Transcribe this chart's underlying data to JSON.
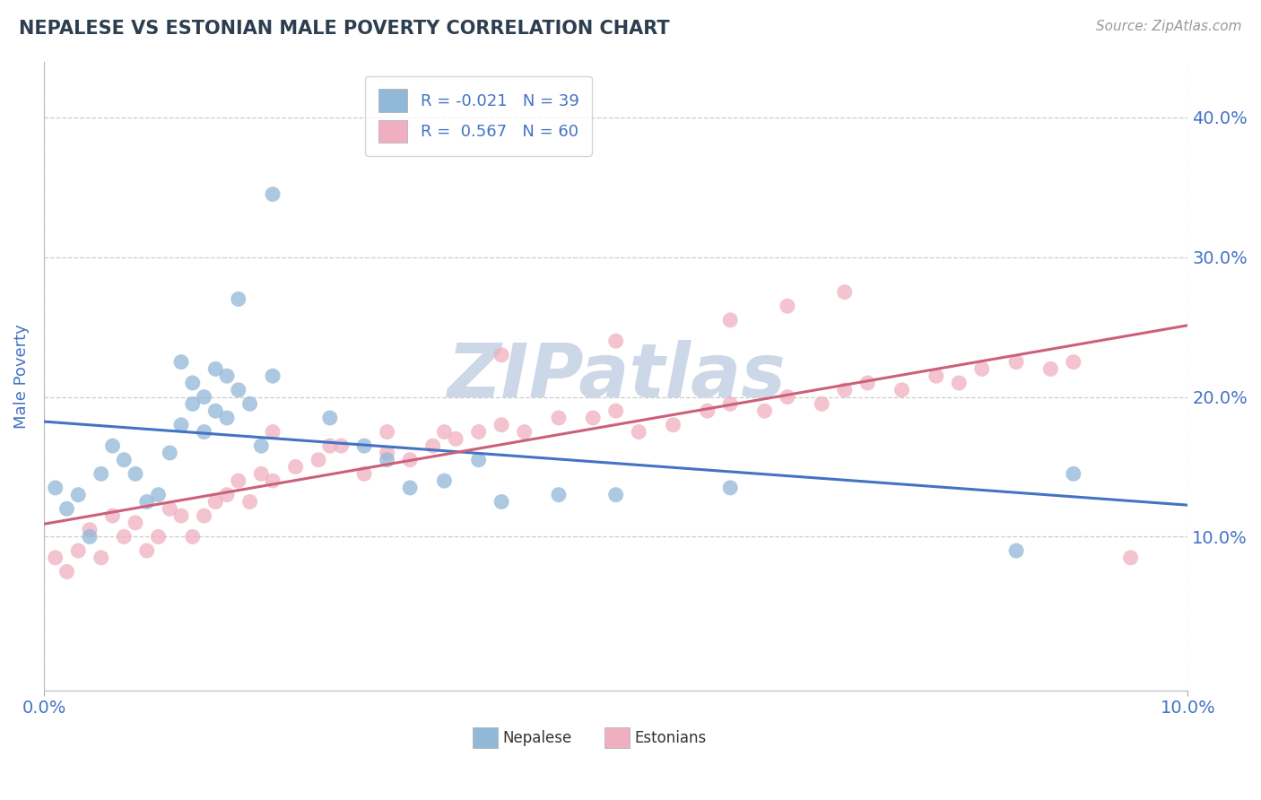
{
  "title": "NEPALESE VS ESTONIAN MALE POVERTY CORRELATION CHART",
  "source": "Source: ZipAtlas.com",
  "ylabel_left": "Male Poverty",
  "xlim": [
    0.0,
    0.1
  ],
  "ylim": [
    -0.01,
    0.44
  ],
  "title_color": "#2d3e50",
  "axis_label_color": "#4472c4",
  "tick_label_color": "#4472c4",
  "grid_color": "#cccccc",
  "background_color": "#ffffff",
  "nepalese_color": "#92b8d8",
  "estonian_color": "#f0afc0",
  "nepalese_line_color": "#4472c4",
  "estonian_line_color": "#cc607a",
  "watermark_color": "#ccd8e8",
  "legend_R_nepalese": "-0.021",
  "legend_N_nepalese": "39",
  "legend_R_estonian": "0.567",
  "legend_N_estonian": "60",
  "nepalese_x": [
    0.001,
    0.002,
    0.003,
    0.004,
    0.005,
    0.006,
    0.007,
    0.008,
    0.009,
    0.01,
    0.011,
    0.012,
    0.013,
    0.014,
    0.015,
    0.016,
    0.017,
    0.018,
    0.019,
    0.02,
    0.012,
    0.013,
    0.014,
    0.015,
    0.016,
    0.017,
    0.02,
    0.025,
    0.028,
    0.03,
    0.032,
    0.035,
    0.038,
    0.04,
    0.045,
    0.05,
    0.06,
    0.085,
    0.09
  ],
  "nepalese_y": [
    0.135,
    0.12,
    0.13,
    0.1,
    0.145,
    0.165,
    0.155,
    0.145,
    0.125,
    0.13,
    0.16,
    0.18,
    0.195,
    0.175,
    0.19,
    0.185,
    0.205,
    0.195,
    0.165,
    0.215,
    0.225,
    0.21,
    0.2,
    0.22,
    0.215,
    0.27,
    0.345,
    0.185,
    0.165,
    0.155,
    0.135,
    0.14,
    0.155,
    0.125,
    0.13,
    0.13,
    0.135,
    0.09,
    0.145
  ],
  "estonian_x": [
    0.001,
    0.002,
    0.003,
    0.004,
    0.005,
    0.006,
    0.007,
    0.008,
    0.009,
    0.01,
    0.011,
    0.012,
    0.013,
    0.014,
    0.015,
    0.016,
    0.017,
    0.018,
    0.019,
    0.02,
    0.022,
    0.024,
    0.026,
    0.028,
    0.03,
    0.032,
    0.034,
    0.036,
    0.038,
    0.04,
    0.042,
    0.045,
    0.048,
    0.05,
    0.052,
    0.055,
    0.058,
    0.06,
    0.063,
    0.065,
    0.068,
    0.07,
    0.072,
    0.075,
    0.078,
    0.08,
    0.082,
    0.085,
    0.088,
    0.09,
    0.02,
    0.025,
    0.03,
    0.035,
    0.04,
    0.05,
    0.06,
    0.065,
    0.07,
    0.095
  ],
  "estonian_y": [
    0.085,
    0.075,
    0.09,
    0.105,
    0.085,
    0.115,
    0.1,
    0.11,
    0.09,
    0.1,
    0.12,
    0.115,
    0.1,
    0.115,
    0.125,
    0.13,
    0.14,
    0.125,
    0.145,
    0.14,
    0.15,
    0.155,
    0.165,
    0.145,
    0.16,
    0.155,
    0.165,
    0.17,
    0.175,
    0.18,
    0.175,
    0.185,
    0.185,
    0.19,
    0.175,
    0.18,
    0.19,
    0.195,
    0.19,
    0.2,
    0.195,
    0.205,
    0.21,
    0.205,
    0.215,
    0.21,
    0.22,
    0.225,
    0.22,
    0.225,
    0.175,
    0.165,
    0.175,
    0.175,
    0.23,
    0.24,
    0.255,
    0.265,
    0.275,
    0.085
  ]
}
